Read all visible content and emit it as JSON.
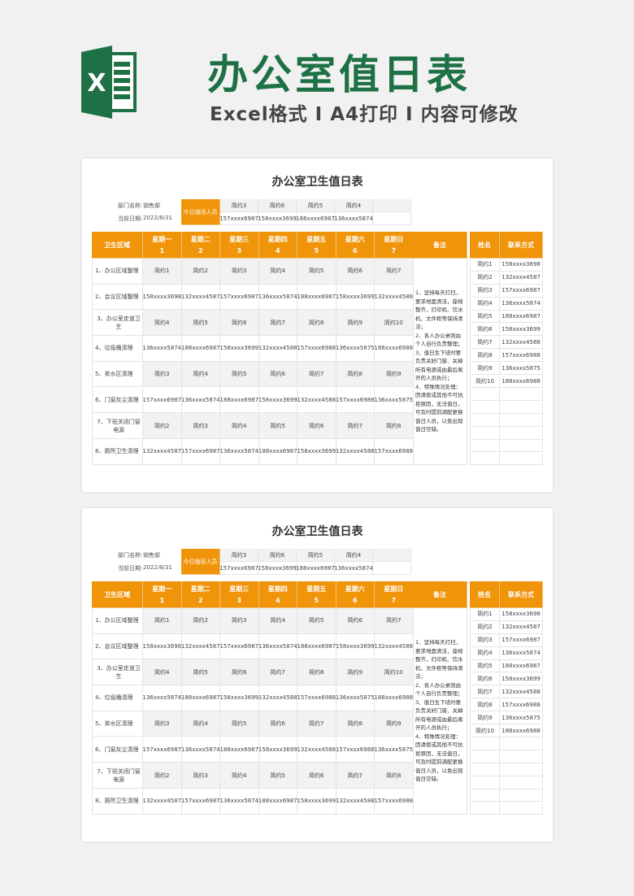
{
  "banner": {
    "title": "办公室值日表",
    "subtitle": "Excel格式 I A4打印 I 内容可修改",
    "logo_letter": "X",
    "accent": "#1e7145"
  },
  "sheet": {
    "title": "办公室卫生值日表",
    "dept_label": "部门名称:",
    "dept_value": "销售部",
    "date_label": "当前日期:",
    "date_value": "2022/8/31",
    "today_label": "今日值班人员",
    "today_names": [
      "简约3",
      "简约6",
      "简约5",
      "简约4",
      ""
    ],
    "today_phones": [
      "157xxxx6987",
      "158xxxx3699",
      "188xxxx6987",
      "136xxxx5874",
      ""
    ],
    "headers": {
      "area": "卫生区域",
      "days": [
        "星期一",
        "星期二",
        "星期三",
        "星期四",
        "星期五",
        "星期六",
        "星期日"
      ],
      "day_nums": [
        "1",
        "2",
        "3",
        "4",
        "5",
        "6",
        "7"
      ],
      "note": "备注",
      "name": "姓名",
      "contact": "联系方式"
    },
    "rows": [
      {
        "area": "1、办公区域整理",
        "cells": [
          "简约1",
          "简约2",
          "简约3",
          "简约4",
          "简约5",
          "简约6",
          "简约7"
        ]
      },
      {
        "area": "2、会议区域整理",
        "cells": [
          "158xxxx3698",
          "132xxxx4587",
          "157xxxx6987",
          "136xxxx5874",
          "188xxxx6987",
          "158xxxx3699",
          "132xxxx4588"
        ]
      },
      {
        "area": "3、办公室走道卫生",
        "cells": [
          "简约4",
          "简约5",
          "简约6",
          "简约7",
          "简约8",
          "简约9",
          "简约10"
        ]
      },
      {
        "area": "4、垃圾桶清理",
        "cells": [
          "136xxxx5874",
          "188xxxx6987",
          "158xxxx3699",
          "132xxxx4588",
          "157xxxx6988",
          "136xxxx5875",
          "188xxxx6988"
        ]
      },
      {
        "area": "5、茶水区清理",
        "cells": [
          "简约3",
          "简约4",
          "简约5",
          "简约6",
          "简约7",
          "简约8",
          "简约9"
        ]
      },
      {
        "area": "6、门窗灰尘清理",
        "cells": [
          "157xxxx6987",
          "136xxxx5874",
          "188xxxx6987",
          "158xxxx3699",
          "132xxxx4588",
          "157xxxx6988",
          "136xxxx5875"
        ]
      },
      {
        "area": "7、下班关闭门窗电源",
        "cells": [
          "简约2",
          "简约3",
          "简约4",
          "简约5",
          "简约6",
          "简约7",
          "简约8"
        ]
      },
      {
        "area": "8、厕所卫生清理",
        "cells": [
          "132xxxx4587",
          "157xxxx6987",
          "136xxxx5874",
          "188xxxx6987",
          "158xxxx3699",
          "132xxxx4588",
          "157xxxx6988"
        ]
      }
    ],
    "note": "1、坚持每天打扫，要求地面清洁，座椅整齐，打印机、饮水机、文件柜等保持清洁；\n2、各人办公桌则由个人自行负责整理；\n3、值日生下班时要负责关好门窗、关掉所有电源或由最后离开的人员执行；\n4、特殊情况处理：因请假或其他不可抗拒原因，无法值日，可及时提前调配更换值日人员，以免出现值日空缺。",
    "contacts": [
      {
        "name": "简约1",
        "phone": "158xxxx3698"
      },
      {
        "name": "简约2",
        "phone": "132xxxx4587"
      },
      {
        "name": "简约3",
        "phone": "157xxxx6987"
      },
      {
        "name": "简约4",
        "phone": "136xxxx5874"
      },
      {
        "name": "简约5",
        "phone": "188xxxx6987"
      },
      {
        "name": "简约6",
        "phone": "158xxxx3699"
      },
      {
        "name": "简约7",
        "phone": "132xxxx4588"
      },
      {
        "name": "简约8",
        "phone": "157xxxx6988"
      },
      {
        "name": "简约9",
        "phone": "136xxxx5875"
      },
      {
        "name": "简约10",
        "phone": "188xxxx6988"
      }
    ],
    "accent": "#f0940a"
  }
}
